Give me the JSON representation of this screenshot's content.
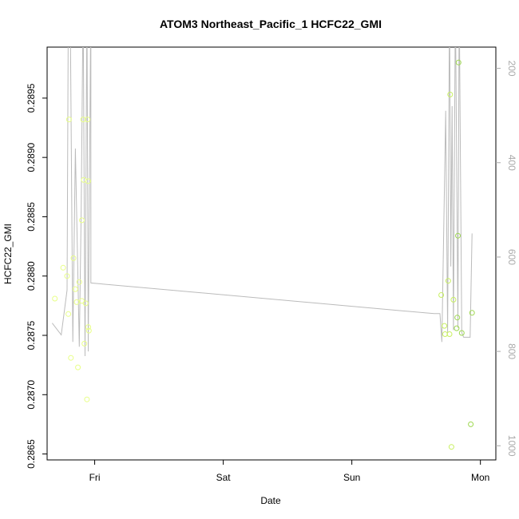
{
  "chart_data": {
    "type": "scatter",
    "title": "ATOM3 Northeast_Pacific_1 HCFC22_GMI",
    "xlabel": "Date",
    "ylabel": "HCFC22_GMI",
    "x_ticks": [
      "Fri",
      "Sat",
      "Sun",
      "Mon"
    ],
    "y_ticks": [
      "0.2865",
      "0.2870",
      "0.2875",
      "0.2880",
      "0.2885",
      "0.2890",
      "0.2895"
    ],
    "y_ticks_right": [
      "200",
      "400",
      "600",
      "800",
      "1000"
    ],
    "xlim": [
      -0.37,
      3.12
    ],
    "ylim": [
      0.28645,
      0.28993
    ],
    "y2lim": [
      1030,
      155
    ],
    "grid": false,
    "point_color_scale": [
      "#e8ff88",
      "#c8f060",
      "#9ed850"
    ],
    "line_color": "#bbbbbb",
    "series": [
      {
        "kind": "points",
        "points": [
          {
            "x": -0.31,
            "y": 0.28781
          },
          {
            "x": -0.245,
            "y": 0.28807
          },
          {
            "x": -0.215,
            "y": 0.288
          },
          {
            "x": -0.205,
            "y": 0.28768
          },
          {
            "x": -0.2,
            "y": 0.28932
          },
          {
            "x": -0.185,
            "y": 0.28731
          },
          {
            "x": -0.165,
            "y": 0.28815
          },
          {
            "x": -0.15,
            "y": 0.28789
          },
          {
            "x": -0.14,
            "y": 0.28778
          },
          {
            "x": -0.13,
            "y": 0.28723
          },
          {
            "x": -0.12,
            "y": 0.28795
          },
          {
            "x": -0.1,
            "y": 0.28779
          },
          {
            "x": -0.1,
            "y": 0.28847
          },
          {
            "x": -0.09,
            "y": 0.28932
          },
          {
            "x": -0.085,
            "y": 0.28881
          },
          {
            "x": -0.08,
            "y": 0.28743
          },
          {
            "x": -0.07,
            "y": 0.28777
          },
          {
            "x": -0.06,
            "y": 0.28696
          },
          {
            "x": -0.055,
            "y": 0.28932
          },
          {
            "x": -0.05,
            "y": 0.2888
          },
          {
            "x": -0.05,
            "y": 0.28757
          },
          {
            "x": -0.045,
            "y": 0.28754
          },
          {
            "x": 2.695,
            "y": 0.28784
          },
          {
            "x": 2.72,
            "y": 0.28758
          },
          {
            "x": 2.725,
            "y": 0.28751
          },
          {
            "x": 2.75,
            "y": 0.28796
          },
          {
            "x": 2.76,
            "y": 0.28751
          },
          {
            "x": 2.765,
            "y": 0.28953
          },
          {
            "x": 2.775,
            "y": 0.28656
          },
          {
            "x": 2.79,
            "y": 0.2878
          },
          {
            "x": 2.815,
            "y": 0.28756
          },
          {
            "x": 2.82,
            "y": 0.28765
          },
          {
            "x": 2.825,
            "y": 0.28834
          },
          {
            "x": 2.83,
            "y": 0.2898
          },
          {
            "x": 2.855,
            "y": 0.28752
          },
          {
            "x": 2.925,
            "y": 0.28675
          },
          {
            "x": 2.935,
            "y": 0.28769
          }
        ]
      },
      {
        "kind": "line",
        "axis": "right",
        "points": [
          {
            "x": -0.33,
            "y": 740
          },
          {
            "x": -0.26,
            "y": 765
          },
          {
            "x": -0.215,
            "y": 670
          },
          {
            "x": -0.205,
            "y": 50
          },
          {
            "x": -0.19,
            "y": 80
          },
          {
            "x": -0.17,
            "y": 780
          },
          {
            "x": -0.15,
            "y": 370
          },
          {
            "x": -0.12,
            "y": 790
          },
          {
            "x": -0.105,
            "y": 500
          },
          {
            "x": -0.09,
            "y": 50
          },
          {
            "x": -0.075,
            "y": 810
          },
          {
            "x": -0.06,
            "y": 50
          },
          {
            "x": -0.05,
            "y": 800
          },
          {
            "x": -0.03,
            "y": 50
          },
          {
            "x": -0.03,
            "y": 655
          },
          {
            "x": 2.64,
            "y": 720
          },
          {
            "x": 2.685,
            "y": 720
          },
          {
            "x": 2.7,
            "y": 780
          },
          {
            "x": 2.73,
            "y": 290
          },
          {
            "x": 2.745,
            "y": 760
          },
          {
            "x": 2.76,
            "y": 50
          },
          {
            "x": 2.77,
            "y": 620
          },
          {
            "x": 2.78,
            "y": 280
          },
          {
            "x": 2.79,
            "y": 755
          },
          {
            "x": 2.805,
            "y": 50
          },
          {
            "x": 2.825,
            "y": 750
          },
          {
            "x": 2.835,
            "y": 50
          },
          {
            "x": 2.855,
            "y": 760
          },
          {
            "x": 2.87,
            "y": 770
          },
          {
            "x": 2.92,
            "y": 770
          },
          {
            "x": 2.935,
            "y": 550
          }
        ]
      }
    ]
  }
}
